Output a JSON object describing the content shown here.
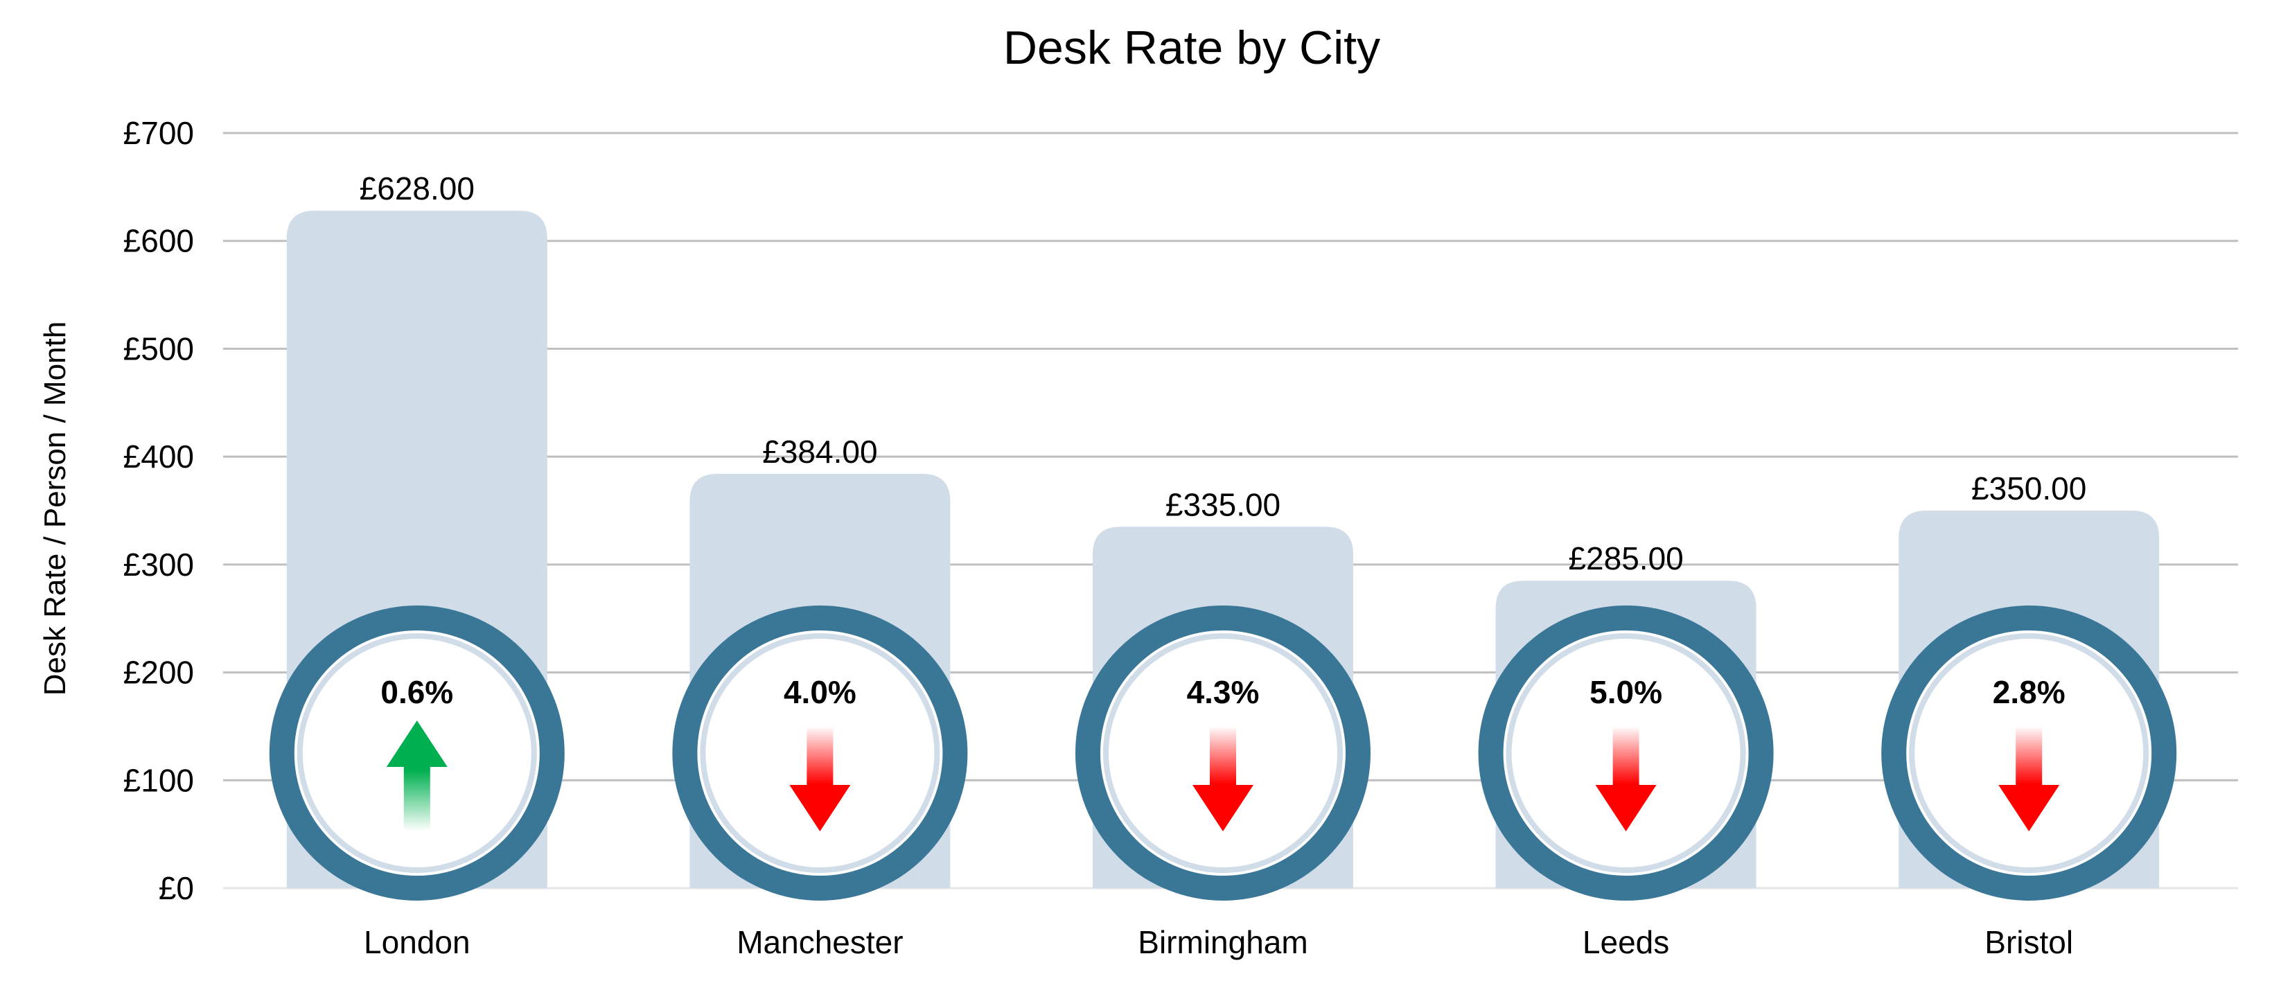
{
  "chart_data": {
    "type": "bar",
    "title": "Desk Rate by City",
    "xlabel": "",
    "ylabel": "Desk Rate / Person / Month",
    "categories": [
      "London",
      "Manchester",
      "Birmingham",
      "Leeds",
      "Bristol"
    ],
    "values": [
      628,
      384,
      335,
      285,
      350
    ],
    "value_labels": [
      "£628.00",
      "£384.00",
      "£335.00",
      "£285.00",
      "£350.00"
    ],
    "changes": [
      {
        "label": "0.6%",
        "direction": "up",
        "icon": "arrow-up-icon"
      },
      {
        "label": "4.0%",
        "direction": "down",
        "icon": "arrow-down-icon"
      },
      {
        "label": "4.3%",
        "direction": "down",
        "icon": "arrow-down-icon"
      },
      {
        "label": "5.0%",
        "direction": "down",
        "icon": "arrow-down-icon"
      },
      {
        "label": "2.8%",
        "direction": "down",
        "icon": "arrow-down-icon"
      }
    ],
    "ylim": [
      0,
      700
    ],
    "yticks": [
      0,
      100,
      200,
      300,
      400,
      500,
      600,
      700
    ],
    "ytick_labels": [
      "£0",
      "£100",
      "£200",
      "£300",
      "£400",
      "£500",
      "£600",
      "£700"
    ],
    "grid": true,
    "legend": "none",
    "colors": {
      "bar": "#d0dce8",
      "ring": "#3a7797",
      "up": "#00b050",
      "down": "#ff0000",
      "grid": "#bfbfbf",
      "text": "#000000"
    }
  }
}
